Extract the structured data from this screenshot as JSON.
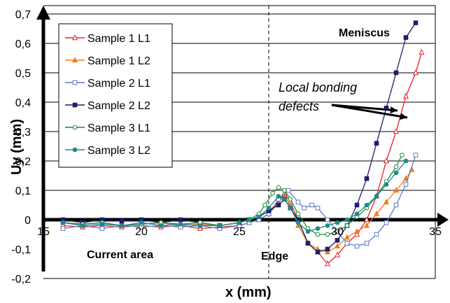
{
  "chart_data": {
    "type": "line",
    "title": "",
    "xlabel": "x (mm)",
    "ylabel": "Uy (mm)",
    "xlim": [
      15,
      35
    ],
    "ylim": [
      -0.2,
      0.7
    ],
    "xticks": [
      "15",
      "20",
      "25",
      "30",
      "35"
    ],
    "yticks": [
      "-0,2",
      "-0,1",
      "0",
      "0,1",
      "0,2",
      "0,3",
      "0,4",
      "0,5",
      "0,6",
      "0,7"
    ],
    "grid": "horizontal",
    "legend_position": "top-left",
    "annotations": {
      "meniscus": "Meniscus",
      "defects_line1": "Local bonding",
      "defects_line2": "defects",
      "current_area": "Current area",
      "edge": "Edge"
    },
    "edge_x": 26.5,
    "series": [
      {
        "name": "Sample 1 L1",
        "color": "#e8202a",
        "marker": "triangle-open",
        "x": [
          16,
          17,
          18,
          19,
          20,
          21,
          22,
          23,
          24,
          25,
          25.5,
          26,
          26.5,
          27,
          27.3,
          27.6,
          28,
          28.5,
          29,
          29.5,
          30,
          30.5,
          31,
          31.5,
          32,
          32.5,
          33,
          33.5,
          34,
          34.3
        ],
        "y": [
          -0.02,
          -0.025,
          -0.02,
          -0.025,
          -0.02,
          -0.025,
          -0.02,
          -0.03,
          -0.025,
          -0.02,
          -0.01,
          0.0,
          0.02,
          0.06,
          0.09,
          0.06,
          0.0,
          -0.08,
          -0.11,
          -0.15,
          -0.12,
          -0.08,
          -0.05,
          0.0,
          0.08,
          0.2,
          0.3,
          0.42,
          0.5,
          0.57
        ]
      },
      {
        "name": "Sample 1 L2",
        "color": "#f07e1a",
        "marker": "triangle-filled",
        "x": [
          16,
          17,
          18,
          19,
          20,
          21,
          22,
          23,
          24,
          25,
          25.5,
          26,
          26.5,
          27,
          27.3,
          27.6,
          28,
          28.5,
          29,
          29.5,
          30,
          30.5,
          31,
          31.5,
          32,
          32.5,
          33,
          33.5,
          33.8
        ],
        "y": [
          -0.01,
          -0.015,
          -0.01,
          -0.02,
          -0.015,
          -0.01,
          -0.02,
          -0.015,
          -0.02,
          -0.01,
          0.0,
          0.01,
          0.03,
          0.06,
          0.08,
          0.05,
          -0.02,
          -0.08,
          -0.1,
          -0.11,
          -0.09,
          -0.06,
          -0.04,
          -0.02,
          0.02,
          0.06,
          0.1,
          0.14,
          0.17
        ]
      },
      {
        "name": "Sample 2 L1",
        "color": "#5a7cc8",
        "marker": "square-open",
        "x": [
          16,
          17,
          18,
          19,
          20,
          21,
          22,
          23,
          24,
          25,
          25.5,
          26,
          26.5,
          27,
          27.5,
          28,
          28.3,
          28.7,
          29,
          29.5,
          30,
          30.5,
          31,
          31.5,
          32,
          32.5,
          33,
          33.5,
          34
        ],
        "y": [
          -0.03,
          -0.02,
          -0.03,
          -0.02,
          -0.025,
          -0.02,
          -0.025,
          -0.02,
          -0.03,
          -0.02,
          -0.01,
          0.0,
          0.02,
          0.07,
          0.1,
          0.06,
          0.04,
          0.05,
          0.04,
          0.0,
          -0.04,
          -0.08,
          -0.09,
          -0.08,
          -0.05,
          -0.01,
          0.05,
          0.12,
          0.22
        ]
      },
      {
        "name": "Sample 2 L2",
        "color": "#1d1d6e",
        "marker": "square-filled",
        "x": [
          16,
          17,
          18,
          19,
          20,
          21,
          22,
          23,
          24,
          25,
          25.5,
          26,
          26.5,
          27,
          27.3,
          27.6,
          28,
          28.5,
          29,
          29.5,
          30,
          30.5,
          31,
          31.5,
          32,
          32.5,
          33,
          33.5,
          34
        ],
        "y": [
          0.0,
          -0.01,
          0.0,
          -0.005,
          0.0,
          -0.01,
          0.0,
          -0.01,
          -0.02,
          -0.01,
          0.0,
          0.01,
          0.03,
          0.05,
          0.07,
          0.04,
          0.0,
          -0.08,
          -0.11,
          -0.1,
          -0.07,
          -0.02,
          0.05,
          0.14,
          0.26,
          0.38,
          0.5,
          0.62,
          0.67
        ]
      },
      {
        "name": "Sample 3 L1",
        "color": "#1e8a3a",
        "marker": "circle-open",
        "x": [
          16,
          17,
          18,
          19,
          20,
          21,
          22,
          23,
          24,
          25,
          25.5,
          26,
          26.3,
          26.7,
          27,
          27.3,
          27.6,
          28,
          28.5,
          29,
          29.5,
          30,
          30.5,
          31,
          31.5,
          32,
          32.5,
          33,
          33.3
        ],
        "y": [
          -0.01,
          -0.015,
          -0.01,
          -0.02,
          -0.015,
          -0.01,
          -0.015,
          -0.01,
          -0.02,
          -0.01,
          0.0,
          0.02,
          0.05,
          0.09,
          0.11,
          0.1,
          0.07,
          0.02,
          -0.03,
          -0.05,
          -0.05,
          -0.04,
          -0.02,
          0.01,
          0.04,
          0.08,
          0.13,
          0.18,
          0.22
        ]
      },
      {
        "name": "Sample 3 L2",
        "color": "#1a8c88",
        "marker": "circle-filled",
        "x": [
          16,
          17,
          18,
          19,
          20,
          21,
          22,
          23,
          24,
          25,
          25.5,
          26,
          26.5,
          27,
          27.3,
          27.6,
          28,
          28.5,
          29,
          29.5,
          30,
          30.5,
          31,
          31.5,
          32,
          32.5,
          33,
          33.5
        ],
        "y": [
          -0.01,
          -0.02,
          -0.015,
          -0.02,
          -0.01,
          -0.02,
          -0.015,
          -0.02,
          -0.02,
          -0.01,
          0.0,
          0.01,
          0.04,
          0.08,
          0.07,
          0.04,
          -0.01,
          -0.04,
          -0.03,
          -0.02,
          -0.01,
          0.0,
          0.02,
          0.05,
          0.08,
          0.12,
          0.16,
          0.2
        ]
      }
    ]
  }
}
